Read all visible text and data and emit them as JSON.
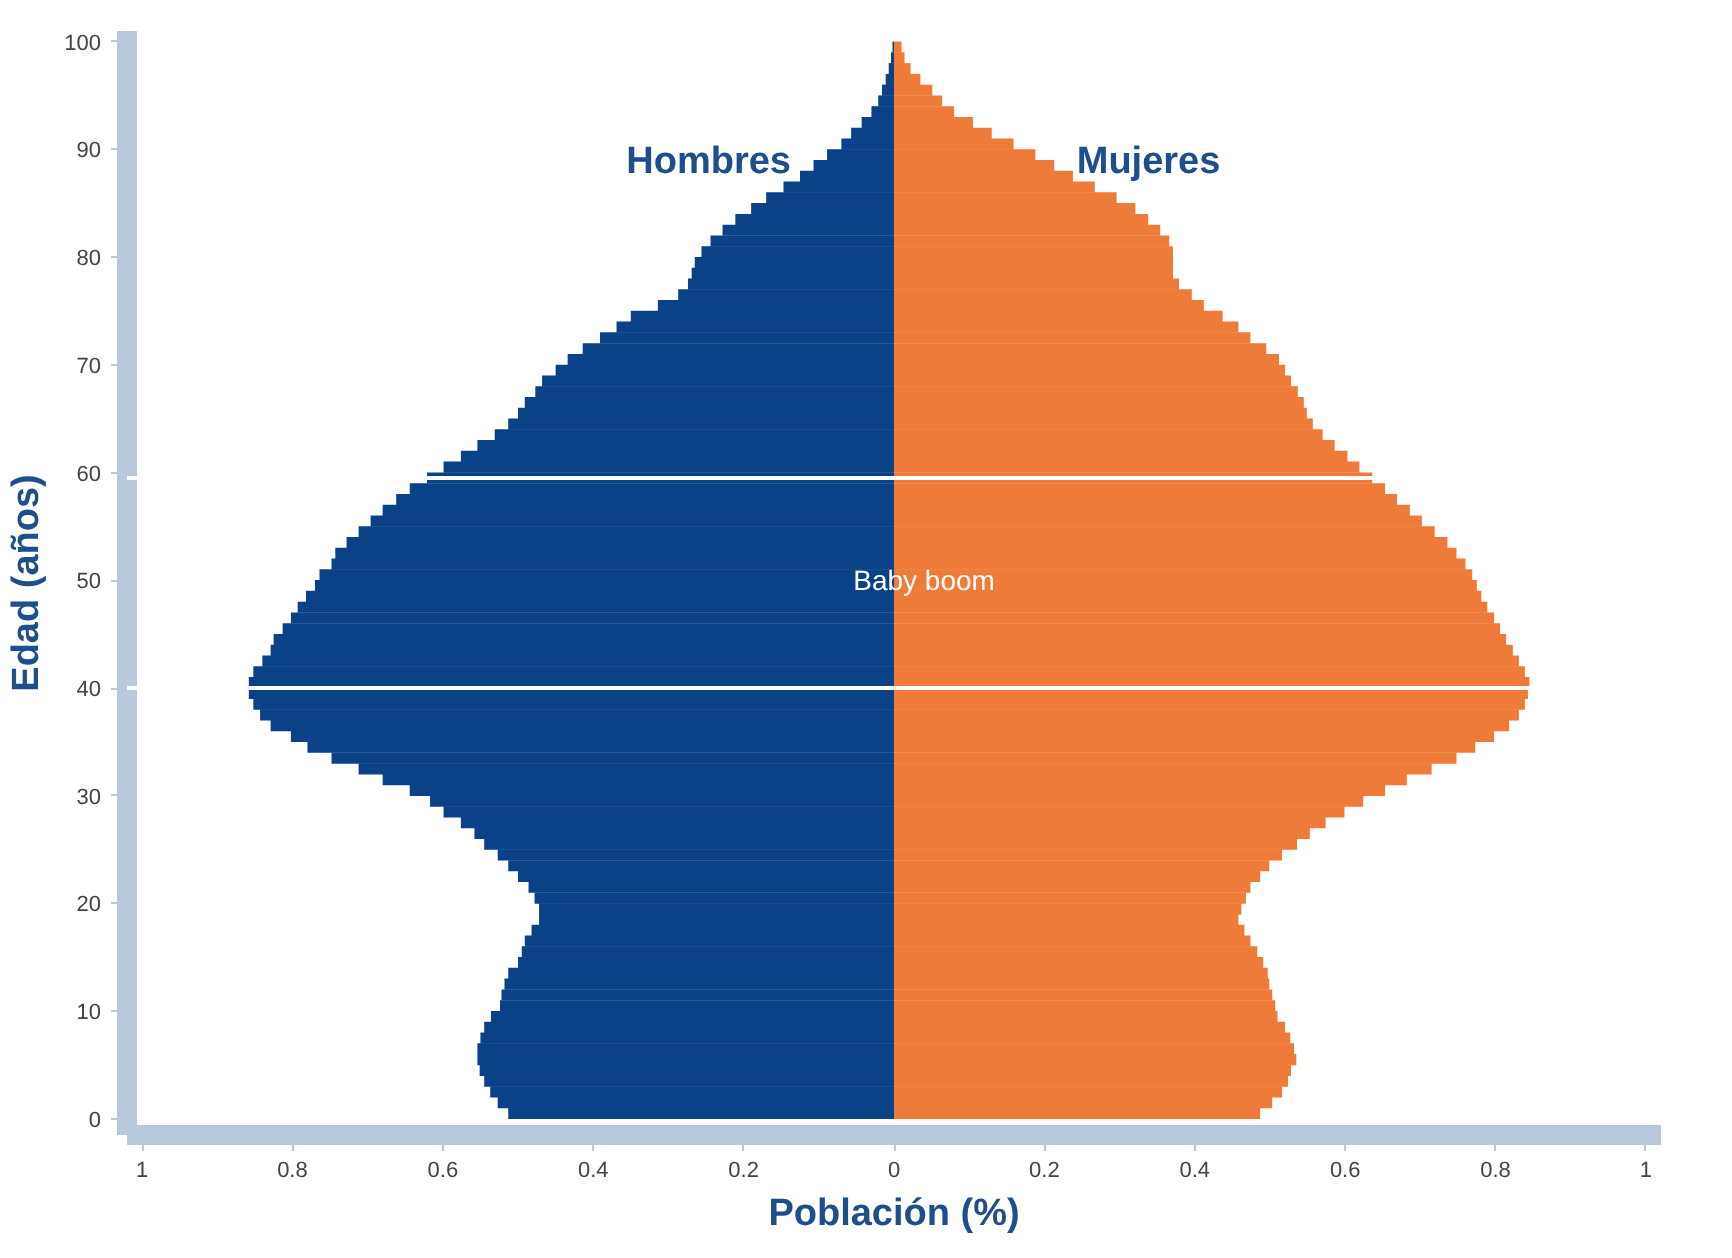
{
  "chart_data": {
    "type": "bar",
    "orientation": "horizontal",
    "xlabel": "Población (%)",
    "ylabel": "Edad (años)",
    "x": [
      0.5,
      1.5,
      2.5,
      3.5,
      4.5,
      5.5,
      6.5,
      7.5,
      8.5,
      9.5,
      10.5,
      11.5,
      12.5,
      13.5,
      14.5,
      15.5,
      16.5,
      17.5,
      18.5,
      19.5,
      20.5,
      21.5,
      22.5,
      23.5,
      24.5,
      25.5,
      26.5,
      27.5,
      28.5,
      29.5,
      30.5,
      31.5,
      32.5,
      33.5,
      34.5,
      35.5,
      36.5,
      37.5,
      38.5,
      39.5,
      40.5,
      41.5,
      42.5,
      43.5,
      44.5,
      45.5,
      46.5,
      47.5,
      48.5,
      49.5,
      50.5,
      51.5,
      52.5,
      53.5,
      54.5,
      55.5,
      56.5,
      57.5,
      58.5,
      59.5,
      60.5,
      61.5,
      62.5,
      63.5,
      64.5,
      65.5,
      66.5,
      67.5,
      68.5,
      69.5,
      70.5,
      71.5,
      72.5,
      73.5,
      74.5,
      75.5,
      76.5,
      77.5,
      78.5,
      79.5,
      80.5,
      81.5,
      82.5,
      83.5,
      84.5,
      85.5,
      86.5,
      87.5,
      88.5,
      89.5,
      90.5,
      91.5,
      92.5,
      93.5,
      94.5,
      95.5,
      96.5,
      97.5,
      98.5,
      99.5
    ],
    "series": [
      {
        "name": "Hombres",
        "color": "#0b4287",
        "values": [
          -0.513,
          -0.527,
          -0.537,
          -0.545,
          -0.551,
          -0.554,
          -0.554,
          -0.55,
          -0.545,
          -0.536,
          -0.524,
          -0.522,
          -0.518,
          -0.513,
          -0.5,
          -0.495,
          -0.491,
          -0.482,
          -0.472,
          -0.472,
          -0.478,
          -0.486,
          -0.5,
          -0.513,
          -0.527,
          -0.545,
          -0.558,
          -0.576,
          -0.599,
          -0.617,
          -0.644,
          -0.68,
          -0.712,
          -0.748,
          -0.78,
          -0.802,
          -0.829,
          -0.843,
          -0.852,
          -0.858,
          -0.858,
          -0.852,
          -0.84,
          -0.829,
          -0.825,
          -0.813,
          -0.802,
          -0.793,
          -0.782,
          -0.77,
          -0.764,
          -0.748,
          -0.743,
          -0.728,
          -0.712,
          -0.696,
          -0.68,
          -0.662,
          -0.644,
          -0.621,
          -0.599,
          -0.576,
          -0.554,
          -0.531,
          -0.513,
          -0.5,
          -0.491,
          -0.477,
          -0.468,
          -0.45,
          -0.434,
          -0.414,
          -0.391,
          -0.369,
          -0.35,
          -0.314,
          -0.287,
          -0.274,
          -0.269,
          -0.265,
          -0.256,
          -0.244,
          -0.228,
          -0.211,
          -0.19,
          -0.17,
          -0.147,
          -0.125,
          -0.107,
          -0.089,
          -0.07,
          -0.057,
          -0.043,
          -0.03,
          -0.021,
          -0.016,
          -0.011,
          -0.007,
          -0.004,
          -0.002
        ]
      },
      {
        "name": "Mujeres",
        "color": "#ef7b3a",
        "values": [
          0.487,
          0.503,
          0.516,
          0.524,
          0.528,
          0.535,
          0.532,
          0.527,
          0.52,
          0.51,
          0.507,
          0.503,
          0.499,
          0.497,
          0.491,
          0.483,
          0.474,
          0.466,
          0.458,
          0.462,
          0.468,
          0.474,
          0.487,
          0.499,
          0.516,
          0.536,
          0.553,
          0.574,
          0.599,
          0.624,
          0.653,
          0.682,
          0.715,
          0.748,
          0.773,
          0.798,
          0.818,
          0.831,
          0.839,
          0.843,
          0.845,
          0.839,
          0.831,
          0.823,
          0.814,
          0.806,
          0.798,
          0.789,
          0.781,
          0.775,
          0.769,
          0.76,
          0.748,
          0.736,
          0.719,
          0.702,
          0.686,
          0.669,
          0.653,
          0.636,
          0.619,
          0.603,
          0.586,
          0.57,
          0.557,
          0.549,
          0.545,
          0.537,
          0.528,
          0.52,
          0.512,
          0.495,
          0.474,
          0.458,
          0.437,
          0.412,
          0.396,
          0.379,
          0.371,
          0.371,
          0.371,
          0.366,
          0.354,
          0.338,
          0.321,
          0.296,
          0.267,
          0.238,
          0.213,
          0.188,
          0.159,
          0.13,
          0.105,
          0.08,
          0.064,
          0.051,
          0.035,
          0.022,
          0.014,
          0.01
        ]
      }
    ],
    "xlim": [
      -1.02,
      1.02
    ],
    "xticks": [
      {
        "value": -1,
        "label": "1"
      },
      {
        "value": -0.8,
        "label": "0.8"
      },
      {
        "value": -0.6,
        "label": "0.6"
      },
      {
        "value": -0.4,
        "label": "0.4"
      },
      {
        "value": -0.2,
        "label": "0.2"
      },
      0,
      0.2,
      0.4,
      0.6,
      0.8,
      1
    ],
    "ylim": [
      -1.5,
      101
    ],
    "yticks": [
      0,
      10,
      20,
      30,
      40,
      50,
      60,
      70,
      80,
      90,
      100
    ],
    "ref_lines": [
      {
        "axis": "y",
        "value": 40,
        "color": "#ffffff"
      },
      {
        "axis": "y",
        "value": 59.5,
        "color": "#ffffff"
      }
    ],
    "annotations": [
      {
        "text": "Baby boom",
        "x": 0.04,
        "y": 50
      }
    ],
    "stacked": true,
    "grid": false,
    "legend": false
  }
}
